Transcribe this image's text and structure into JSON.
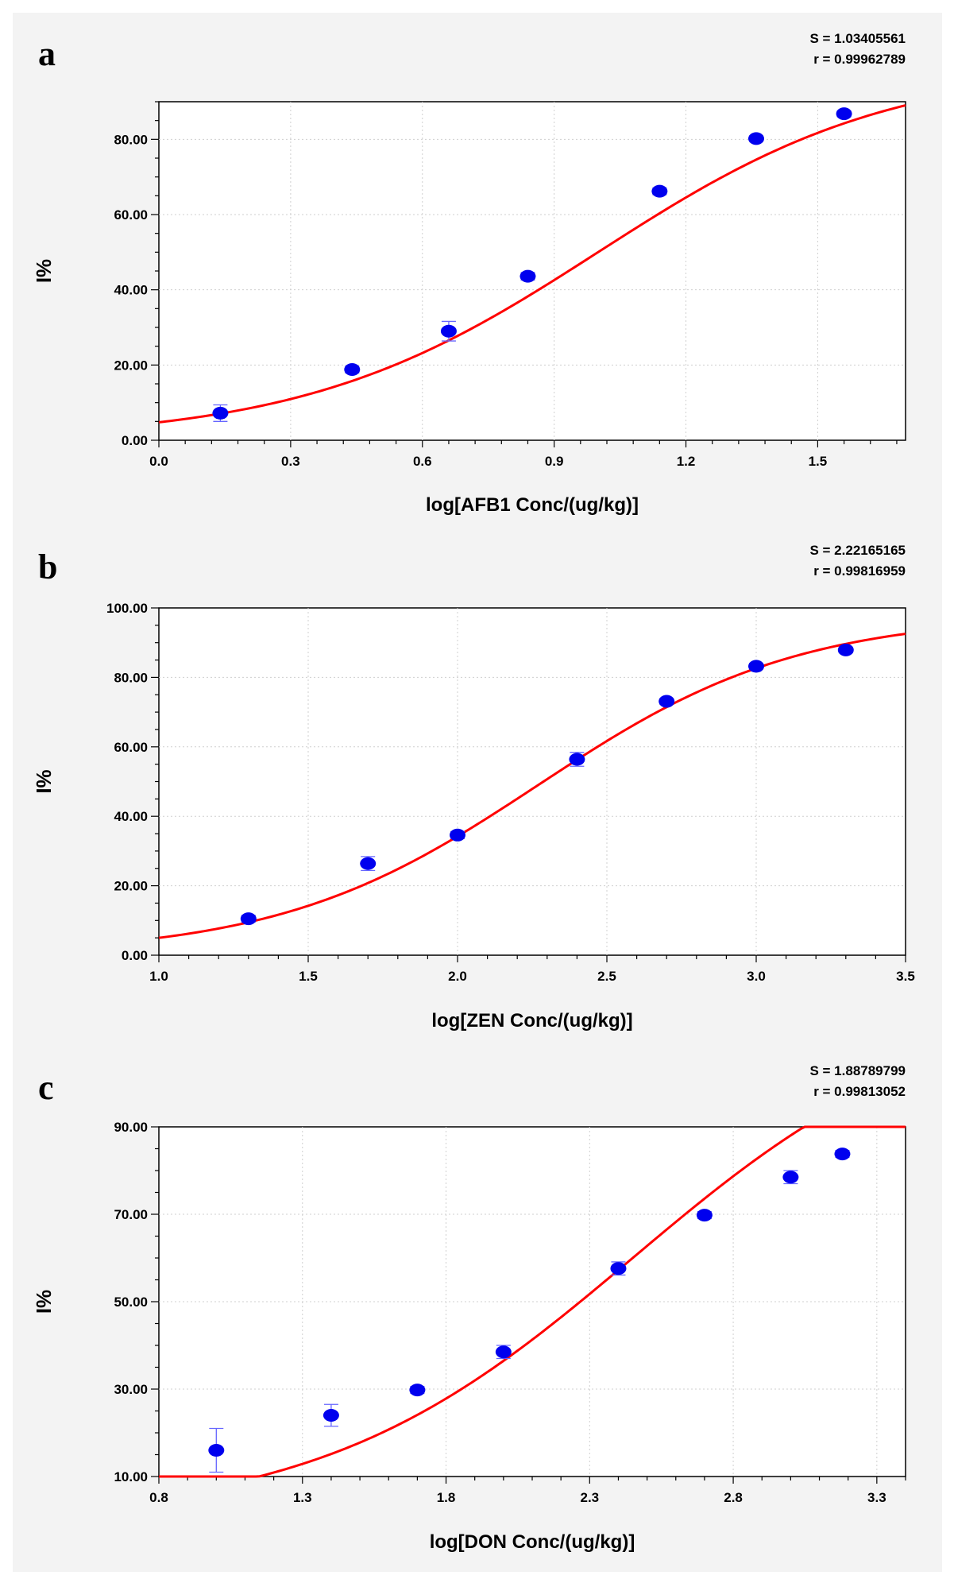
{
  "chart_data": [
    {
      "type": "scatter",
      "panel": "a",
      "stats": [
        "S = 1.03405561",
        "r = 0.99962789"
      ],
      "xlabel": "log[AFB1 Conc/(ug/kg)]",
      "ylabel": "I%",
      "xlim": [
        0,
        1.7
      ],
      "ylim": [
        0,
        90
      ],
      "xticks": [
        0,
        0.3,
        0.6,
        0.9,
        1.2,
        1.5
      ],
      "xtick_labels": [
        "0.0",
        "0.3",
        "0.6",
        "0.9",
        "1.2",
        "1.5"
      ],
      "yticks": [
        0,
        20,
        40,
        60,
        80
      ],
      "ytick_labels": [
        "0.00",
        "20.00",
        "40.00",
        "60.00",
        "80.00"
      ],
      "grid": true,
      "points": [
        {
          "x": 0.14,
          "y": 7.2,
          "err": 2.2
        },
        {
          "x": 0.44,
          "y": 18.8,
          "err": 0.9
        },
        {
          "x": 0.66,
          "y": 29.0,
          "err": 2.6
        },
        {
          "x": 0.84,
          "y": 43.6,
          "err": 1.0
        },
        {
          "x": 1.14,
          "y": 66.2,
          "err": 0.9
        },
        {
          "x": 1.36,
          "y": 80.2,
          "err": 0.7
        },
        {
          "x": 1.56,
          "y": 86.8,
          "err": 0.8
        }
      ],
      "fit": {
        "bottom": 0,
        "top": 100,
        "logEC50": 1.0,
        "hill": 1.3
      }
    },
    {
      "type": "scatter",
      "panel": "b",
      "stats": [
        "S = 2.22165165",
        "r = 0.99816959"
      ],
      "xlabel": "log[ZEN Conc/(ug/kg)]",
      "ylabel": "I%",
      "xlim": [
        1.0,
        3.5
      ],
      "ylim": [
        0,
        100
      ],
      "xticks": [
        1.0,
        1.5,
        2.0,
        2.5,
        3.0,
        3.5
      ],
      "xtick_labels": [
        "1.0",
        "1.5",
        "2.0",
        "2.5",
        "3.0",
        "3.5"
      ],
      "yticks": [
        0,
        20,
        40,
        60,
        80,
        100
      ],
      "ytick_labels": [
        "0.00",
        "20.00",
        "40.00",
        "60.00",
        "80.00",
        "100.00"
      ],
      "grid": true,
      "points": [
        {
          "x": 1.3,
          "y": 10.5,
          "err": 1.0
        },
        {
          "x": 1.7,
          "y": 26.4,
          "err": 2.0
        },
        {
          "x": 2.0,
          "y": 34.6,
          "err": 1.0
        },
        {
          "x": 2.4,
          "y": 56.4,
          "err": 2.0
        },
        {
          "x": 2.7,
          "y": 73.1,
          "err": 0.8
        },
        {
          "x": 3.0,
          "y": 83.2,
          "err": 0.8
        },
        {
          "x": 3.3,
          "y": 87.9,
          "err": 0.8
        }
      ],
      "fit": {
        "bottom": 0,
        "top": 98,
        "logEC50": 2.27,
        "hill": 1.0
      }
    },
    {
      "type": "scatter",
      "panel": "c",
      "stats": [
        "S = 1.88789799",
        "r = 0.99813052"
      ],
      "xlabel": "log[DON Conc/(ug/kg)]",
      "ylabel": "I%",
      "xlim": [
        0.8,
        3.4
      ],
      "ylim": [
        10,
        90
      ],
      "xticks": [
        0.8,
        1.3,
        1.8,
        2.3,
        2.8,
        3.3
      ],
      "xtick_labels": [
        "0.8",
        "1.3",
        "1.8",
        "2.3",
        "2.8",
        "3.3"
      ],
      "yticks": [
        10,
        30,
        50,
        70,
        90
      ],
      "ytick_labels": [
        "10.00",
        "30.00",
        "50.00",
        "70.00",
        "90.00"
      ],
      "grid": true,
      "points": [
        {
          "x": 1.0,
          "y": 16.0,
          "err": 5.0
        },
        {
          "x": 1.4,
          "y": 24.0,
          "err": 2.5
        },
        {
          "x": 1.7,
          "y": 29.8,
          "err": 0.8
        },
        {
          "x": 2.0,
          "y": 38.5,
          "err": 1.5
        },
        {
          "x": 2.4,
          "y": 57.6,
          "err": 1.5
        },
        {
          "x": 2.7,
          "y": 69.8,
          "err": 0.8
        },
        {
          "x": 3.0,
          "y": 78.5,
          "err": 1.5
        },
        {
          "x": 3.18,
          "y": 83.8,
          "err": 0.8
        }
      ],
      "fit": {
        "bottom": 0,
        "top": 120,
        "logEC50": 2.45,
        "hill": 0.8
      }
    }
  ]
}
